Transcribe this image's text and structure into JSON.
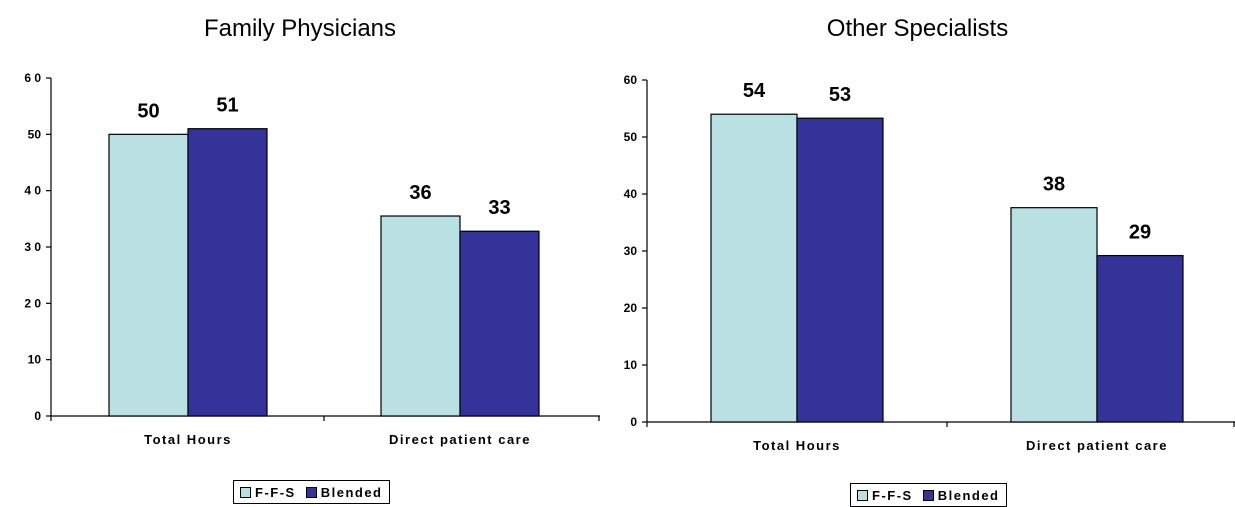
{
  "chart_data": [
    {
      "type": "bar",
      "title": "Family Physicians",
      "categories": [
        "Total Hours",
        "Direct patient care"
      ],
      "series": [
        {
          "name": "F-F-S",
          "values": [
            50,
            35.5
          ],
          "labels": [
            "50",
            "36"
          ],
          "color": "#B9E1E3"
        },
        {
          "name": "Blended",
          "values": [
            51,
            32.8
          ],
          "labels": [
            "51",
            "33"
          ],
          "color": "#33339A"
        }
      ],
      "ylim": [
        0,
        60
      ],
      "yticks": [
        "0",
        "10",
        "2 0",
        "3 0",
        "4 0",
        "50",
        "6 0"
      ],
      "xlabel": "",
      "ylabel": "",
      "grid": false,
      "legend": "bottom"
    },
    {
      "type": "bar",
      "title": "Other Specialists",
      "categories": [
        "Total Hours",
        "Direct patient care"
      ],
      "series": [
        {
          "name": "F-F-S",
          "values": [
            54,
            37.6
          ],
          "labels": [
            "54",
            "38"
          ],
          "color": "#B9E1E3"
        },
        {
          "name": "Blended",
          "values": [
            53.3,
            29.2
          ],
          "labels": [
            "53",
            "29"
          ],
          "color": "#33339A"
        }
      ],
      "ylim": [
        0,
        60
      ],
      "yticks": [
        "0",
        "10",
        "20",
        "30",
        "40",
        "50",
        "60"
      ],
      "xlabel": "",
      "ylabel": "",
      "grid": false,
      "legend": "bottom"
    }
  ]
}
